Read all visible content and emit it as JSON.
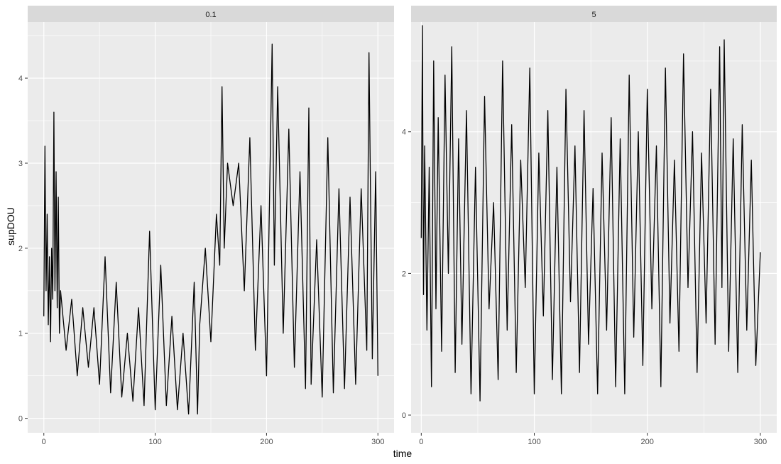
{
  "chart_data": {
    "type": "line",
    "xlabel": "time",
    "ylabel": "supDOU",
    "colors": {
      "panel_bg": "#ebebeb",
      "strip_bg": "#d9d9d9",
      "grid": "#ffffff",
      "line": "#000000"
    },
    "facets": [
      {
        "label": "0.1",
        "xlim": [
          -14.5,
          314.5
        ],
        "ylim": [
          -0.17,
          4.66
        ],
        "xticks": [
          0,
          100,
          200,
          300
        ],
        "yticks": [
          0,
          1,
          2,
          3,
          4
        ],
        "ytick_labels": [
          "0",
          "1",
          "2",
          "3",
          "4"
        ],
        "series": [
          {
            "x": [
              0,
              1,
              2,
              3,
              4,
              5,
              6,
              7,
              8,
              9,
              10,
              11,
              12,
              13,
              14,
              15,
              20,
              25,
              30,
              35,
              40,
              45,
              50,
              55,
              60,
              65,
              70,
              75,
              80,
              85,
              90,
              95,
              100,
              105,
              110,
              115,
              120,
              125,
              130,
              135,
              138,
              140,
              145,
              150,
              155,
              158,
              160,
              162,
              165,
              170,
              175,
              180,
              185,
              190,
              195,
              200,
              205,
              207,
              210,
              215,
              220,
              225,
              230,
              235,
              238,
              240,
              245,
              250,
              255,
              260,
              265,
              270,
              275,
              280,
              285,
              290,
              292,
              295,
              298,
              300
            ],
            "y": [
              1.2,
              3.2,
              1.5,
              2.4,
              1.1,
              1.9,
              0.9,
              2.0,
              1.4,
              3.6,
              1.5,
              2.9,
              1.3,
              2.6,
              1.0,
              1.5,
              0.8,
              1.4,
              0.5,
              1.3,
              0.6,
              1.3,
              0.4,
              1.9,
              0.3,
              1.6,
              0.25,
              1.0,
              0.2,
              1.3,
              0.15,
              2.2,
              0.1,
              1.8,
              0.15,
              1.2,
              0.1,
              1.0,
              0.05,
              1.6,
              0.05,
              1.1,
              2.0,
              0.9,
              2.4,
              1.8,
              3.9,
              2.0,
              3.0,
              2.5,
              3.0,
              1.5,
              3.3,
              0.8,
              2.5,
              0.5,
              4.4,
              1.8,
              3.9,
              1.0,
              3.4,
              0.6,
              2.9,
              0.35,
              3.65,
              0.4,
              2.1,
              0.25,
              3.3,
              0.3,
              2.7,
              0.35,
              2.6,
              0.4,
              2.7,
              0.8,
              4.3,
              0.7,
              2.9,
              0.5
            ]
          }
        ]
      },
      {
        "label": "5",
        "xlim": [
          -9.0,
          314.5
        ],
        "ylim": [
          -0.25,
          5.55
        ],
        "xticks": [
          0,
          100,
          200,
          300
        ],
        "yticks": [
          0,
          2,
          4
        ],
        "ytick_labels": [
          "0",
          "2",
          "4"
        ],
        "series": [
          {
            "x": [
              0,
              1,
              2,
              3,
              5,
              7,
              9,
              11,
              13,
              15,
              18,
              21,
              24,
              27,
              30,
              33,
              36,
              40,
              44,
              48,
              52,
              56,
              60,
              64,
              68,
              72,
              76,
              80,
              84,
              88,
              92,
              96,
              100,
              104,
              108,
              112,
              116,
              120,
              124,
              128,
              132,
              136,
              140,
              144,
              148,
              152,
              156,
              160,
              164,
              168,
              172,
              176,
              180,
              184,
              188,
              192,
              196,
              200,
              204,
              208,
              212,
              216,
              220,
              224,
              228,
              232,
              236,
              240,
              244,
              248,
              252,
              256,
              260,
              264,
              266,
              268,
              272,
              276,
              280,
              284,
              288,
              292,
              296,
              300
            ],
            "y": [
              2.5,
              5.5,
              1.7,
              3.8,
              1.2,
              3.5,
              0.4,
              5.0,
              1.5,
              4.2,
              0.9,
              4.8,
              2.0,
              5.2,
              0.6,
              3.9,
              1.0,
              4.3,
              0.3,
              3.5,
              0.2,
              4.5,
              1.5,
              3.0,
              0.5,
              5.0,
              1.2,
              4.1,
              0.6,
              3.6,
              1.8,
              4.9,
              0.3,
              3.7,
              1.4,
              4.3,
              0.5,
              3.5,
              0.3,
              4.6,
              1.6,
              3.8,
              0.6,
              4.3,
              1.0,
              3.2,
              0.3,
              3.7,
              1.2,
              4.2,
              0.4,
              3.9,
              0.3,
              4.8,
              1.1,
              4.0,
              0.7,
              4.6,
              1.5,
              3.8,
              0.4,
              4.9,
              1.3,
              3.6,
              0.9,
              5.1,
              1.8,
              4.0,
              0.6,
              3.7,
              1.3,
              4.6,
              1.0,
              5.2,
              1.8,
              5.3,
              0.9,
              3.9,
              0.6,
              4.1,
              1.2,
              3.6,
              0.7,
              2.3
            ]
          }
        ]
      }
    ]
  }
}
